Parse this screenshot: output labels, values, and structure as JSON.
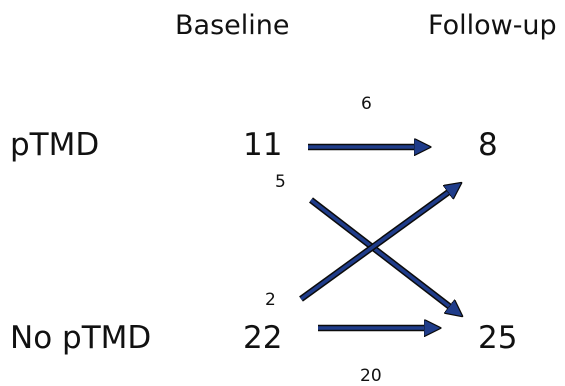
{
  "columns": {
    "baseline": "Baseline",
    "followup": "Follow-up"
  },
  "rows": {
    "ptmd": "pTMD",
    "no_ptmd": "No pTMD"
  },
  "counts": {
    "baseline_ptmd": "11",
    "baseline_no_ptmd": "22",
    "followup_ptmd": "8",
    "followup_no_ptmd": "25"
  },
  "flows": {
    "ptmd_to_ptmd": "6",
    "ptmd_to_no_ptmd": "5",
    "no_ptmd_to_ptmd": "2",
    "no_ptmd_to_no_ptmd": "20"
  },
  "colors": {
    "arrow_fill": "#1f3c8a",
    "arrow_outline": "#0b0b0b",
    "text": "#111111"
  }
}
